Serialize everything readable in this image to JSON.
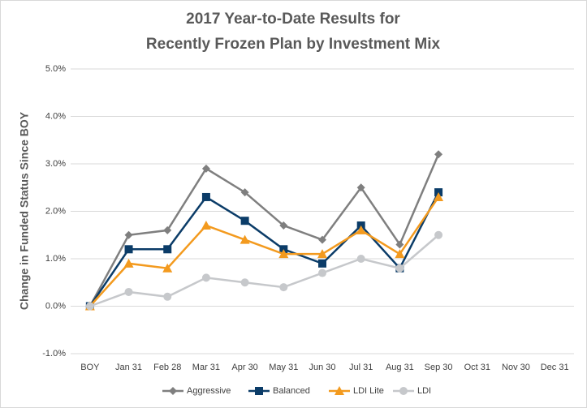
{
  "chart_data": {
    "type": "line",
    "title": [
      "2017 Year-to-Date Results for",
      "Recently Frozen Plan by Investment Mix"
    ],
    "y_label": "Change in Funded Status Since BOY",
    "categories": [
      "BOY",
      "Jan 31",
      "Feb 28",
      "Mar 31",
      "Apr 30",
      "May 31",
      "Jun 30",
      "Jul 31",
      "Aug 31",
      "Sep 30",
      "Oct 31",
      "Nov 30",
      "Dec 31"
    ],
    "series": [
      {
        "name": "Aggressive",
        "color": "#7f7f7f",
        "marker": "diamond",
        "values": [
          0,
          1.5,
          1.6,
          2.9,
          2.4,
          1.7,
          1.4,
          2.5,
          1.3,
          3.2,
          null,
          null,
          null
        ]
      },
      {
        "name": "Balanced",
        "color": "#0b3c68",
        "marker": "square",
        "values": [
          0,
          1.2,
          1.2,
          2.3,
          1.8,
          1.2,
          0.9,
          1.7,
          0.8,
          2.4,
          null,
          null,
          null
        ]
      },
      {
        "name": "LDI Lite",
        "color": "#f39a1e",
        "marker": "triangle",
        "values": [
          0,
          0.9,
          0.8,
          1.7,
          1.4,
          1.1,
          1.1,
          1.6,
          1.1,
          2.3,
          null,
          null,
          null
        ]
      },
      {
        "name": "LDI",
        "color": "#c6c8cb",
        "marker": "circle",
        "values": [
          0,
          0.3,
          0.2,
          0.6,
          0.5,
          0.4,
          0.7,
          1.0,
          0.8,
          1.5,
          null,
          null,
          null
        ]
      }
    ],
    "ylim": [
      -1,
      5
    ],
    "yticks": [
      {
        "value": -1,
        "label": "-1.0%"
      },
      {
        "value": 0,
        "label": "0.0%"
      },
      {
        "value": 1,
        "label": "1.0%"
      },
      {
        "value": 2,
        "label": "2.0%"
      },
      {
        "value": 3,
        "label": "3.0%"
      },
      {
        "value": 4,
        "label": "4.0%"
      },
      {
        "value": 5,
        "label": "5.0%"
      }
    ],
    "grid": true,
    "legend": "bottom"
  }
}
